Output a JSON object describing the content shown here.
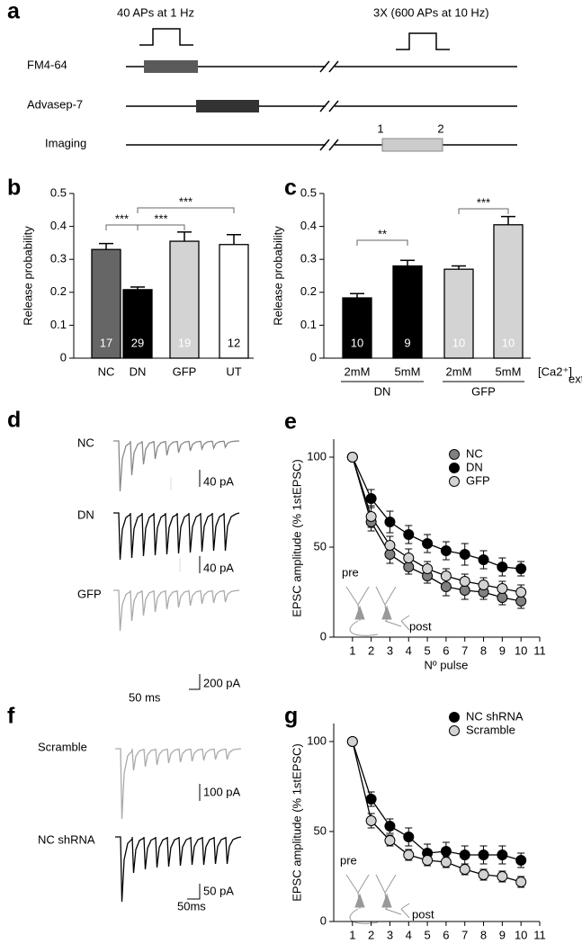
{
  "figure": {
    "panel_labels": [
      "a",
      "b",
      "c",
      "d",
      "e",
      "f",
      "g"
    ]
  },
  "protocol": {
    "stimuli": [
      "40 APs at 1 Hz",
      "3X (600 APs at 10 Hz)"
    ],
    "rows": [
      "FM4-64",
      "Advasep-7",
      "Imaging"
    ],
    "imaging_marks": [
      "1",
      "2"
    ]
  },
  "traces": {
    "d": {
      "labels": [
        "NC",
        "DN",
        "GFP"
      ],
      "scale_labels": [
        "40 pA",
        "40 pA",
        "200 pA"
      ],
      "time_label": "50 ms"
    },
    "f": {
      "labels": [
        "Scramble",
        "NC shRNA"
      ],
      "scale_labels": [
        "100 pA",
        "50 pA"
      ],
      "time_label": "50ms"
    }
  },
  "chart_data": [
    {
      "type": "bar",
      "ylabel": "Release probability",
      "categories": [
        "NC",
        "DN",
        "GFP",
        "UT"
      ],
      "values": [
        0.33,
        0.208,
        0.355,
        0.345
      ],
      "errors": [
        0.018,
        0.008,
        0.028,
        0.03
      ],
      "colors": [
        "#666666",
        "#000000",
        "#d3d3d3",
        "#ffffff"
      ],
      "n": [
        17,
        29,
        19,
        12
      ],
      "significance": [
        {
          "from": 0,
          "to": 1,
          "label": "***"
        },
        {
          "from": 1,
          "to": 2,
          "label": "***"
        },
        {
          "from": 1,
          "to": 3,
          "label": "***"
        }
      ],
      "ylim": [
        0,
        0.5
      ],
      "yticks": [
        0,
        0.1,
        0.2,
        0.3,
        0.4,
        0.5
      ]
    },
    {
      "type": "bar",
      "ylabel": "Release probability",
      "categories": [
        "2mM",
        "5mM",
        "2mM",
        "5mM"
      ],
      "groups": [
        "DN",
        "GFP"
      ],
      "unit_label": "[Ca2⁺]",
      "unit_subscript": "ext",
      "values": [
        0.183,
        0.28,
        0.27,
        0.405
      ],
      "errors": [
        0.013,
        0.017,
        0.01,
        0.025
      ],
      "colors": [
        "#000000",
        "#000000",
        "#d3d3d3",
        "#d3d3d3"
      ],
      "n": [
        10,
        9,
        10,
        10
      ],
      "significance": [
        {
          "from": 0,
          "to": 1,
          "label": "**"
        },
        {
          "from": 2,
          "to": 3,
          "label": "***"
        }
      ],
      "ylim": [
        0,
        0.5
      ],
      "yticks": [
        0,
        0.1,
        0.2,
        0.3,
        0.4,
        0.5
      ]
    },
    {
      "type": "line",
      "xlabel": "Nº pulse",
      "ylabel": "EPSC amplitude (% 1stEPSC)",
      "x": [
        1,
        2,
        3,
        4,
        5,
        6,
        7,
        8,
        9,
        10
      ],
      "series": [
        {
          "name": "NC",
          "color": "#808080",
          "values": [
            100,
            64,
            46,
            39,
            34,
            28,
            26,
            25,
            22,
            20
          ],
          "errors": [
            0,
            5,
            5,
            4,
            4,
            5,
            5,
            4,
            4,
            4
          ]
        },
        {
          "name": "DN",
          "color": "#000000",
          "values": [
            100,
            77,
            64,
            57,
            52,
            48,
            46,
            43,
            39,
            38
          ],
          "errors": [
            0,
            5,
            6,
            5,
            5,
            5,
            6,
            5,
            5,
            4
          ]
        },
        {
          "name": "GFP",
          "color": "#d3d3d3",
          "values": [
            100,
            67,
            51,
            44,
            38,
            34,
            31,
            29,
            27,
            25
          ],
          "errors": [
            0,
            6,
            5,
            5,
            4,
            4,
            4,
            4,
            4,
            4
          ]
        }
      ],
      "annotations": [
        "pre",
        "post"
      ],
      "legend": "upper right",
      "xlim": [
        0,
        11
      ],
      "xticks": [
        1,
        2,
        3,
        4,
        5,
        6,
        7,
        8,
        9,
        10,
        11
      ],
      "ylim": [
        0,
        110
      ],
      "yticks": [
        0,
        50,
        100
      ]
    },
    {
      "type": "line",
      "xlabel": "Nº pulse",
      "ylabel": "EPSC amplitude (% 1stEPSC)",
      "x": [
        1,
        2,
        3,
        4,
        5,
        6,
        7,
        8,
        9,
        10
      ],
      "series": [
        {
          "name": "NC shRNA",
          "color": "#000000",
          "values": [
            100,
            68,
            53,
            47,
            38,
            39,
            37,
            37,
            37,
            34
          ],
          "errors": [
            0,
            4,
            4,
            5,
            5,
            5,
            5,
            5,
            5,
            4
          ]
        },
        {
          "name": "Scramble",
          "color": "#d3d3d3",
          "values": [
            100,
            56,
            45,
            37,
            34,
            33,
            29,
            26,
            25,
            22
          ],
          "errors": [
            0,
            4,
            3,
            3,
            3,
            3,
            3,
            3,
            3,
            3
          ]
        }
      ],
      "annotations": [
        "pre",
        "post"
      ],
      "legend": "upper right",
      "xlim": [
        0,
        11
      ],
      "xticks": [
        1,
        2,
        3,
        4,
        5,
        6,
        7,
        8,
        9,
        10,
        11
      ],
      "ylim": [
        0,
        110
      ],
      "yticks": [
        0,
        50,
        100
      ]
    }
  ]
}
